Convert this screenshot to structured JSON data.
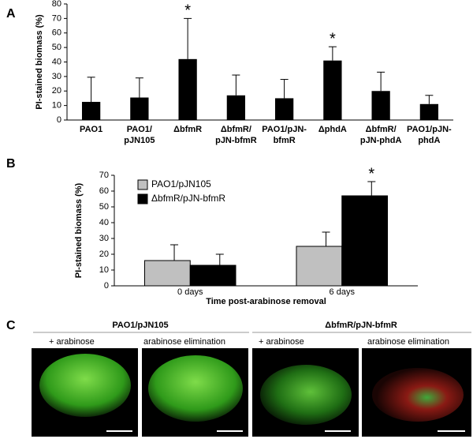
{
  "panel_labels": [
    "A",
    "B",
    "C"
  ],
  "chart_data": [
    {
      "type": "bar",
      "ylabel": "PI-stained  biomass (%)",
      "categories": [
        "PAO1",
        "PAO1/\npJN105",
        "ΔbfmR",
        "ΔbfmR/\npJN-bfmR",
        "PAO1/pJN-\nbfmR",
        "ΔphdA",
        "ΔbfmR/\npJN-phdA",
        "PAO1/pJN-\nphdA"
      ],
      "values": [
        12.5,
        15.5,
        42,
        17,
        15,
        41,
        20,
        11
      ],
      "errors": [
        17,
        13.5,
        28,
        14,
        13,
        9.5,
        13,
        6
      ],
      "color": "#000000",
      "ylim": [
        0,
        80
      ],
      "yticks": [
        0,
        10,
        20,
        30,
        40,
        50,
        60,
        70,
        80
      ],
      "annotations": [
        {
          "text": "*",
          "category": "ΔbfmR"
        },
        {
          "text": "*",
          "category": "ΔphdA"
        }
      ]
    },
    {
      "type": "grouped-bar",
      "ylabel": "PI-stained biomass (%)",
      "xlabel": "Time post-arabinose removal",
      "categories": [
        "0 days",
        "6 days"
      ],
      "series": [
        {
          "name": "PAO1/pJN105",
          "color": "#c0c0c0",
          "values": [
            16,
            25
          ],
          "errors": [
            10,
            9
          ]
        },
        {
          "name": "ΔbfmR/pJN-bfmR",
          "color": "#000000",
          "values": [
            13,
            57
          ],
          "errors": [
            7,
            9
          ]
        }
      ],
      "ylim": [
        0,
        70
      ],
      "yticks": [
        0,
        10,
        20,
        30,
        40,
        50,
        60,
        70
      ],
      "legend": "upper-left",
      "annotations": [
        {
          "text": "*",
          "category": "6 days",
          "series": "ΔbfmR/pJN-bfmR"
        }
      ]
    }
  ],
  "panel_c": {
    "groups": [
      {
        "title": "PAO1/pJN105",
        "conditions": [
          "+ arabinose",
          "arabinose elimination"
        ]
      },
      {
        "title": "ΔbfmR/pJN-bfmR",
        "conditions": [
          "+ arabinose",
          "arabinose elimination"
        ]
      }
    ]
  }
}
